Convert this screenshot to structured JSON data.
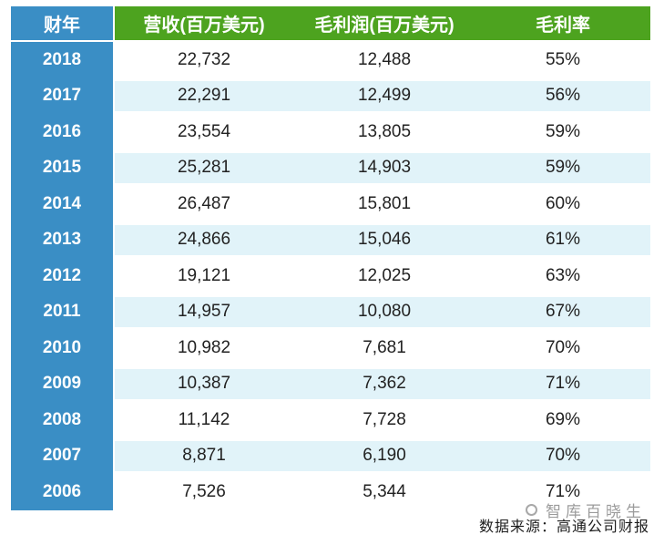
{
  "colors": {
    "year_column_blue": "#3a8ec5",
    "header_green": "#4da31f",
    "alt_row_cyan": "#e1f3f9",
    "data_text": "#222222",
    "watermark_grey": "#9b9b9b"
  },
  "table": {
    "headers": [
      "财年",
      "营收(百万美元)",
      "毛利润(百万美元)",
      "毛利率"
    ],
    "rows": [
      {
        "year": "2018",
        "revenue": "22,732",
        "profit": "12,488",
        "margin": "55%"
      },
      {
        "year": "2017",
        "revenue": "22,291",
        "profit": "12,499",
        "margin": "56%"
      },
      {
        "year": "2016",
        "revenue": "23,554",
        "profit": "13,805",
        "margin": "59%"
      },
      {
        "year": "2015",
        "revenue": "25,281",
        "profit": "14,903",
        "margin": "59%"
      },
      {
        "year": "2014",
        "revenue": "26,487",
        "profit": "15,801",
        "margin": "60%"
      },
      {
        "year": "2013",
        "revenue": "24,866",
        "profit": "15,046",
        "margin": "61%"
      },
      {
        "year": "2012",
        "revenue": "19,121",
        "profit": "12,025",
        "margin": "63%"
      },
      {
        "year": "2011",
        "revenue": "14,957",
        "profit": "10,080",
        "margin": "67%"
      },
      {
        "year": "2010",
        "revenue": "10,982",
        "profit": "7,681",
        "margin": "70%"
      },
      {
        "year": "2009",
        "revenue": "10,387",
        "profit": "7,362",
        "margin": "71%"
      },
      {
        "year": "2008",
        "revenue": "11,142",
        "profit": "7,728",
        "margin": "69%"
      },
      {
        "year": "2007",
        "revenue": "8,871",
        "profit": "6,190",
        "margin": "70%"
      },
      {
        "year": "2006",
        "revenue": "7,526",
        "profit": "5,344",
        "margin": "71%"
      }
    ]
  },
  "footer": {
    "source": "数据来源：高通公司财报",
    "watermark": "智库百晓生"
  },
  "chart_data": {
    "type": "table",
    "title": "",
    "columns": [
      "财年",
      "营收(百万美元)",
      "毛利润(百万美元)",
      "毛利率"
    ],
    "rows": [
      [
        "2018",
        22732,
        12488,
        "55%"
      ],
      [
        "2017",
        22291,
        12499,
        "56%"
      ],
      [
        "2016",
        23554,
        13805,
        "59%"
      ],
      [
        "2015",
        25281,
        14903,
        "59%"
      ],
      [
        "2014",
        26487,
        15801,
        "60%"
      ],
      [
        "2013",
        24866,
        15046,
        "61%"
      ],
      [
        "2012",
        19121,
        12025,
        "63%"
      ],
      [
        "2011",
        14957,
        10080,
        "67%"
      ],
      [
        "2010",
        10982,
        7681,
        "70%"
      ],
      [
        "2009",
        10387,
        7362,
        "71%"
      ],
      [
        "2008",
        11142,
        7728,
        "69%"
      ],
      [
        "2007",
        8871,
        6190,
        "70%"
      ],
      [
        "2006",
        7526,
        5344,
        "71%"
      ]
    ]
  }
}
